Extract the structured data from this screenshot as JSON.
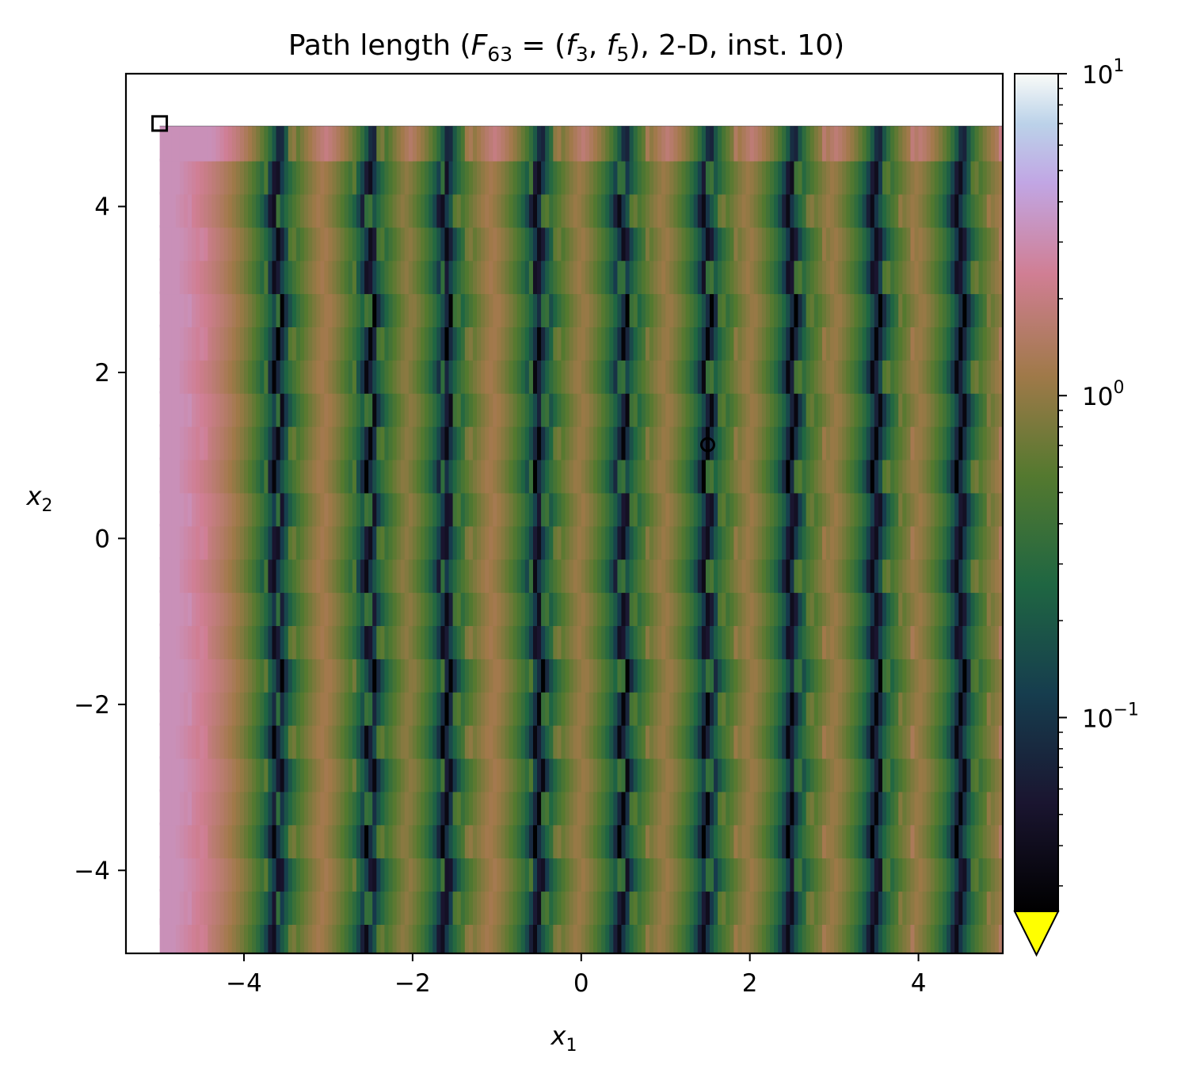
{
  "chart_data": {
    "type": "heatmap",
    "title": {
      "pre": "Path length (",
      "F": "F",
      "F_sub": "63",
      "eq": " = (",
      "f_a": "f",
      "f_a_sub": "3",
      "comma": ", ",
      "f_b": "f",
      "f_b_sub": "5",
      "post": "), 2-D, inst. 10)"
    },
    "xlabel": {
      "var": "x",
      "sub": "1"
    },
    "ylabel": {
      "var": "x",
      "sub": "2"
    },
    "xlim": [
      -5.4,
      5.0
    ],
    "ylim": [
      -5.0,
      5.6
    ],
    "xticks": [
      {
        "value": -4,
        "label": "−4"
      },
      {
        "value": -2,
        "label": "−2"
      },
      {
        "value": 0,
        "label": "0"
      },
      {
        "value": 2,
        "label": "2"
      },
      {
        "value": 4,
        "label": "4"
      }
    ],
    "yticks": [
      {
        "value": -4,
        "label": "−4"
      },
      {
        "value": -2,
        "label": "−2"
      },
      {
        "value": 0,
        "label": "0"
      },
      {
        "value": 2,
        "label": "2"
      },
      {
        "value": 4,
        "label": "4"
      }
    ],
    "heatmap_extent": {
      "x": [
        -5.0,
        5.0
      ],
      "y": [
        -5.0,
        5.0
      ]
    },
    "stripe_columns_x": [
      -3.6,
      -2.5,
      -1.6,
      -0.5,
      0.5,
      1.5,
      2.5,
      3.5,
      4.5
    ],
    "band_rows_y": [
      -4.8,
      -4.45,
      -4.05,
      -3.65,
      -3.25,
      -2.85,
      -2.45,
      -2.05,
      -1.65,
      -1.25,
      -0.85,
      -0.45,
      -0.05,
      0.35,
      0.75,
      1.15,
      1.55,
      1.95,
      2.35,
      2.75,
      3.15,
      3.55,
      3.95,
      4.35,
      4.75
    ],
    "markers": [
      {
        "shape": "square",
        "x": -5.0,
        "y": 5.0
      },
      {
        "shape": "circle",
        "x": 1.5,
        "y": 1.13
      }
    ],
    "colorbar": {
      "scale": "log",
      "range": [
        0.025,
        10
      ],
      "ticks": [
        {
          "value": 10,
          "base": "10",
          "exp": "1"
        },
        {
          "value": 1,
          "base": "10",
          "exp": "0"
        },
        {
          "value": 0.1,
          "base": "10",
          "exp": "−1"
        }
      ],
      "extend_min_color": "#ffff00",
      "colormap": [
        {
          "t": 0.0,
          "color": "#000000"
        },
        {
          "t": 0.13,
          "color": "#1a1530"
        },
        {
          "t": 0.26,
          "color": "#163d4e"
        },
        {
          "t": 0.39,
          "color": "#1f6642"
        },
        {
          "t": 0.52,
          "color": "#54792f"
        },
        {
          "t": 0.64,
          "color": "#a07949"
        },
        {
          "t": 0.76,
          "color": "#d07e93"
        },
        {
          "t": 0.87,
          "color": "#c1a6e4"
        },
        {
          "t": 0.94,
          "color": "#bbd2e9"
        },
        {
          "t": 1.0,
          "color": "#f9fbf8"
        }
      ]
    }
  }
}
